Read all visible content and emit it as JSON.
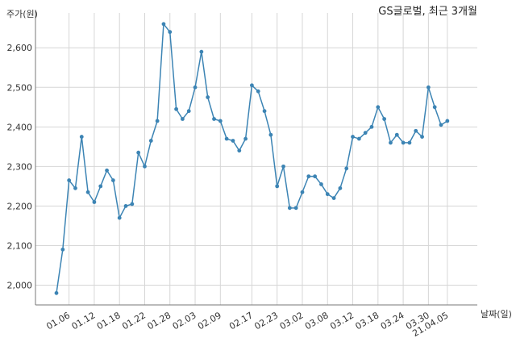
{
  "chart_data": {
    "type": "line",
    "title": "GS글로벌, 최근 3개월",
    "ylabel": "주가(원)",
    "xlabel": "날짜(일)",
    "ylim": [
      1950,
      2680
    ],
    "yticks": [
      2000,
      2100,
      2200,
      2300,
      2400,
      2500,
      2600
    ],
    "ytick_labels": [
      "2,000",
      "2,100",
      "2,200",
      "2,300",
      "2,400",
      "2,500",
      "2,600"
    ],
    "xtick_labels": [
      "01.06",
      "01.12",
      "01.18",
      "01.22",
      "01.28",
      "02.03",
      "02.09",
      "02.17",
      "02.23",
      "03.02",
      "03.08",
      "03.12",
      "03.18",
      "03.24",
      "03.30",
      "21.04.05"
    ],
    "xtick_index": [
      2,
      6,
      10,
      14,
      18,
      22,
      26,
      31,
      35,
      39,
      43,
      47,
      51,
      55,
      59,
      62
    ],
    "grid": true,
    "legend": "none",
    "line_color": "#3c84b4",
    "series": [
      {
        "values": [
          1980,
          2090,
          2265,
          2245,
          2375,
          2235,
          2210,
          2250,
          2290,
          2265,
          2170,
          2200,
          2205,
          2335,
          2300,
          2365,
          2415,
          2660,
          2640,
          2445,
          2420,
          2440,
          2500,
          2590,
          2475,
          2420,
          2415,
          2370,
          2365,
          2340,
          2370,
          2505,
          2490,
          2440,
          2380,
          2250,
          2300,
          2195,
          2195,
          2235,
          2275,
          2275,
          2255,
          2230,
          2220,
          2245,
          2295,
          2375,
          2370,
          2385,
          2400,
          2450,
          2420,
          2360,
          2380,
          2360,
          2360,
          2390,
          2375,
          2500,
          2450,
          2405,
          2415
        ]
      }
    ]
  }
}
